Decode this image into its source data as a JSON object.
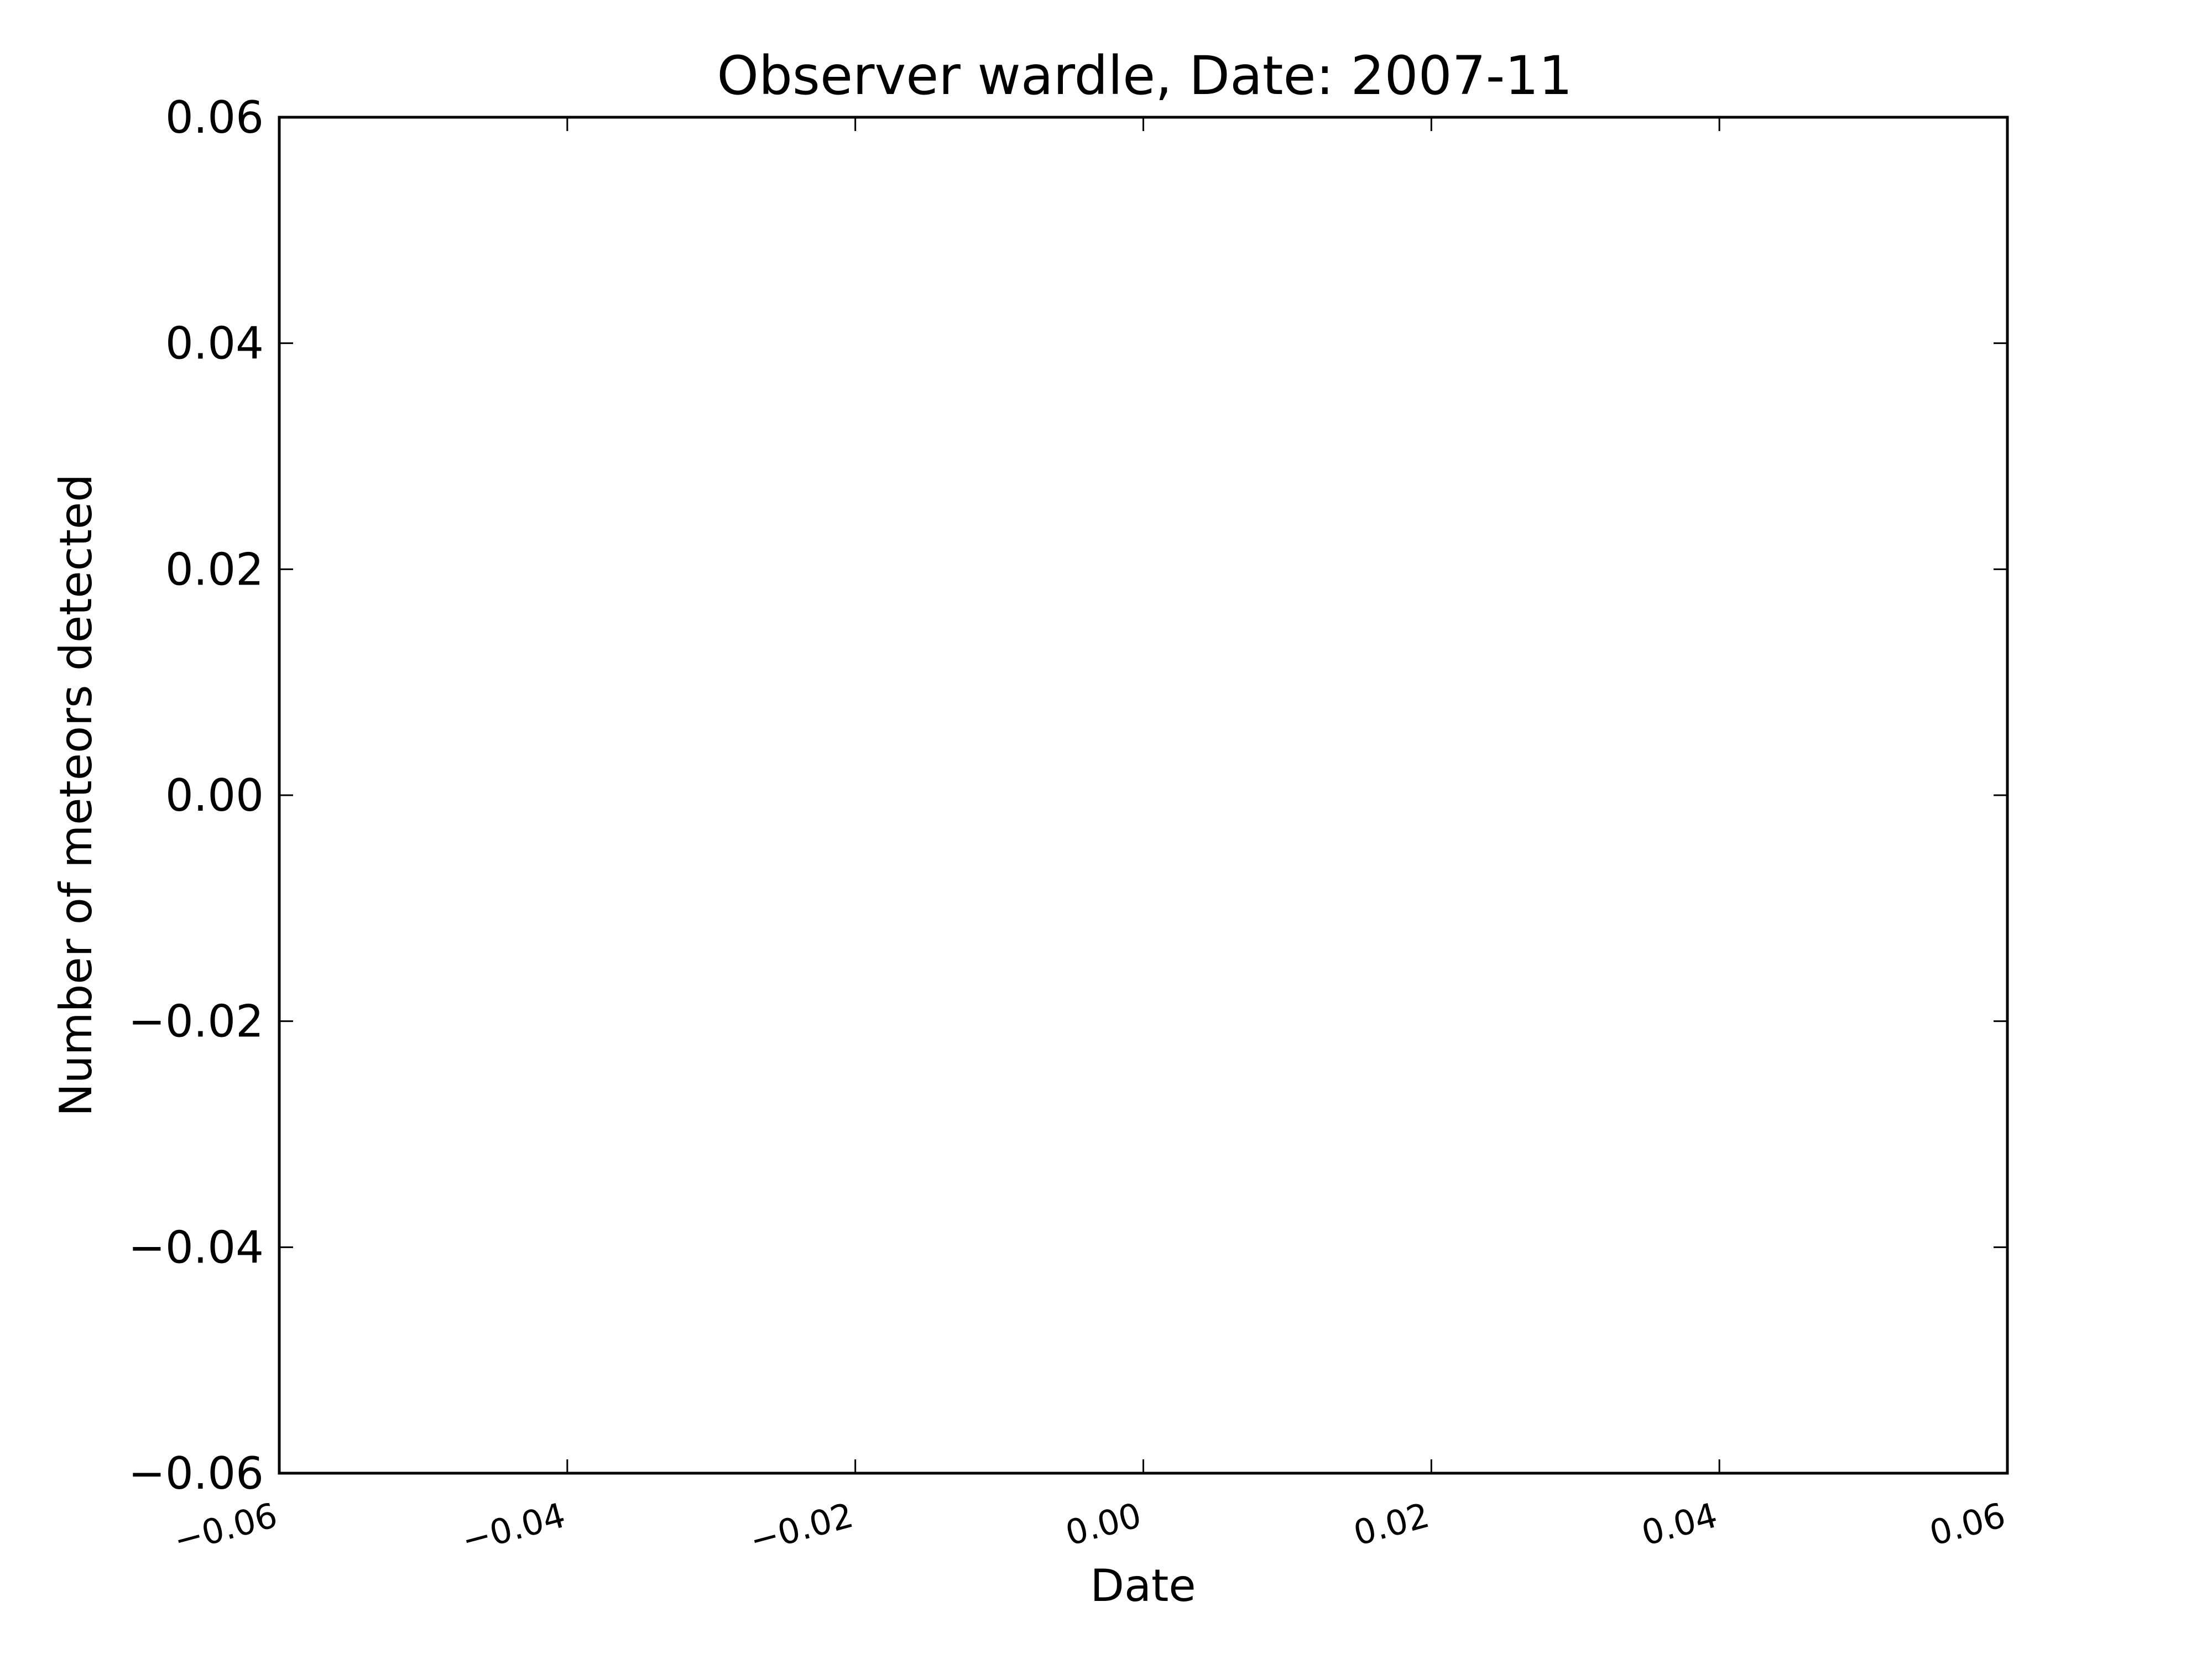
{
  "chart_data": {
    "type": "line",
    "title": "Observer wardle, Date: 2007-11",
    "xlabel": "Date",
    "ylabel": "Number of meteors detected",
    "xlim": [
      -0.06,
      0.06
    ],
    "ylim": [
      -0.06,
      0.06
    ],
    "xticks": [
      -0.06,
      -0.04,
      -0.02,
      0.0,
      0.02,
      0.04,
      0.06
    ],
    "xtick_labels": [
      "−0.06",
      "−0.04",
      "−0.02",
      "0.00",
      "0.02",
      "0.04",
      "0.06"
    ],
    "yticks": [
      -0.06,
      -0.04,
      -0.02,
      0.0,
      0.02,
      0.04,
      0.06
    ],
    "ytick_labels": [
      "−0.06",
      "−0.04",
      "−0.02",
      "0.00",
      "0.02",
      "0.04",
      "0.06"
    ],
    "xtick_rotation_deg": 15,
    "grid": false,
    "series": [],
    "colors": {
      "axes": "#000000",
      "background": "#ffffff"
    }
  }
}
